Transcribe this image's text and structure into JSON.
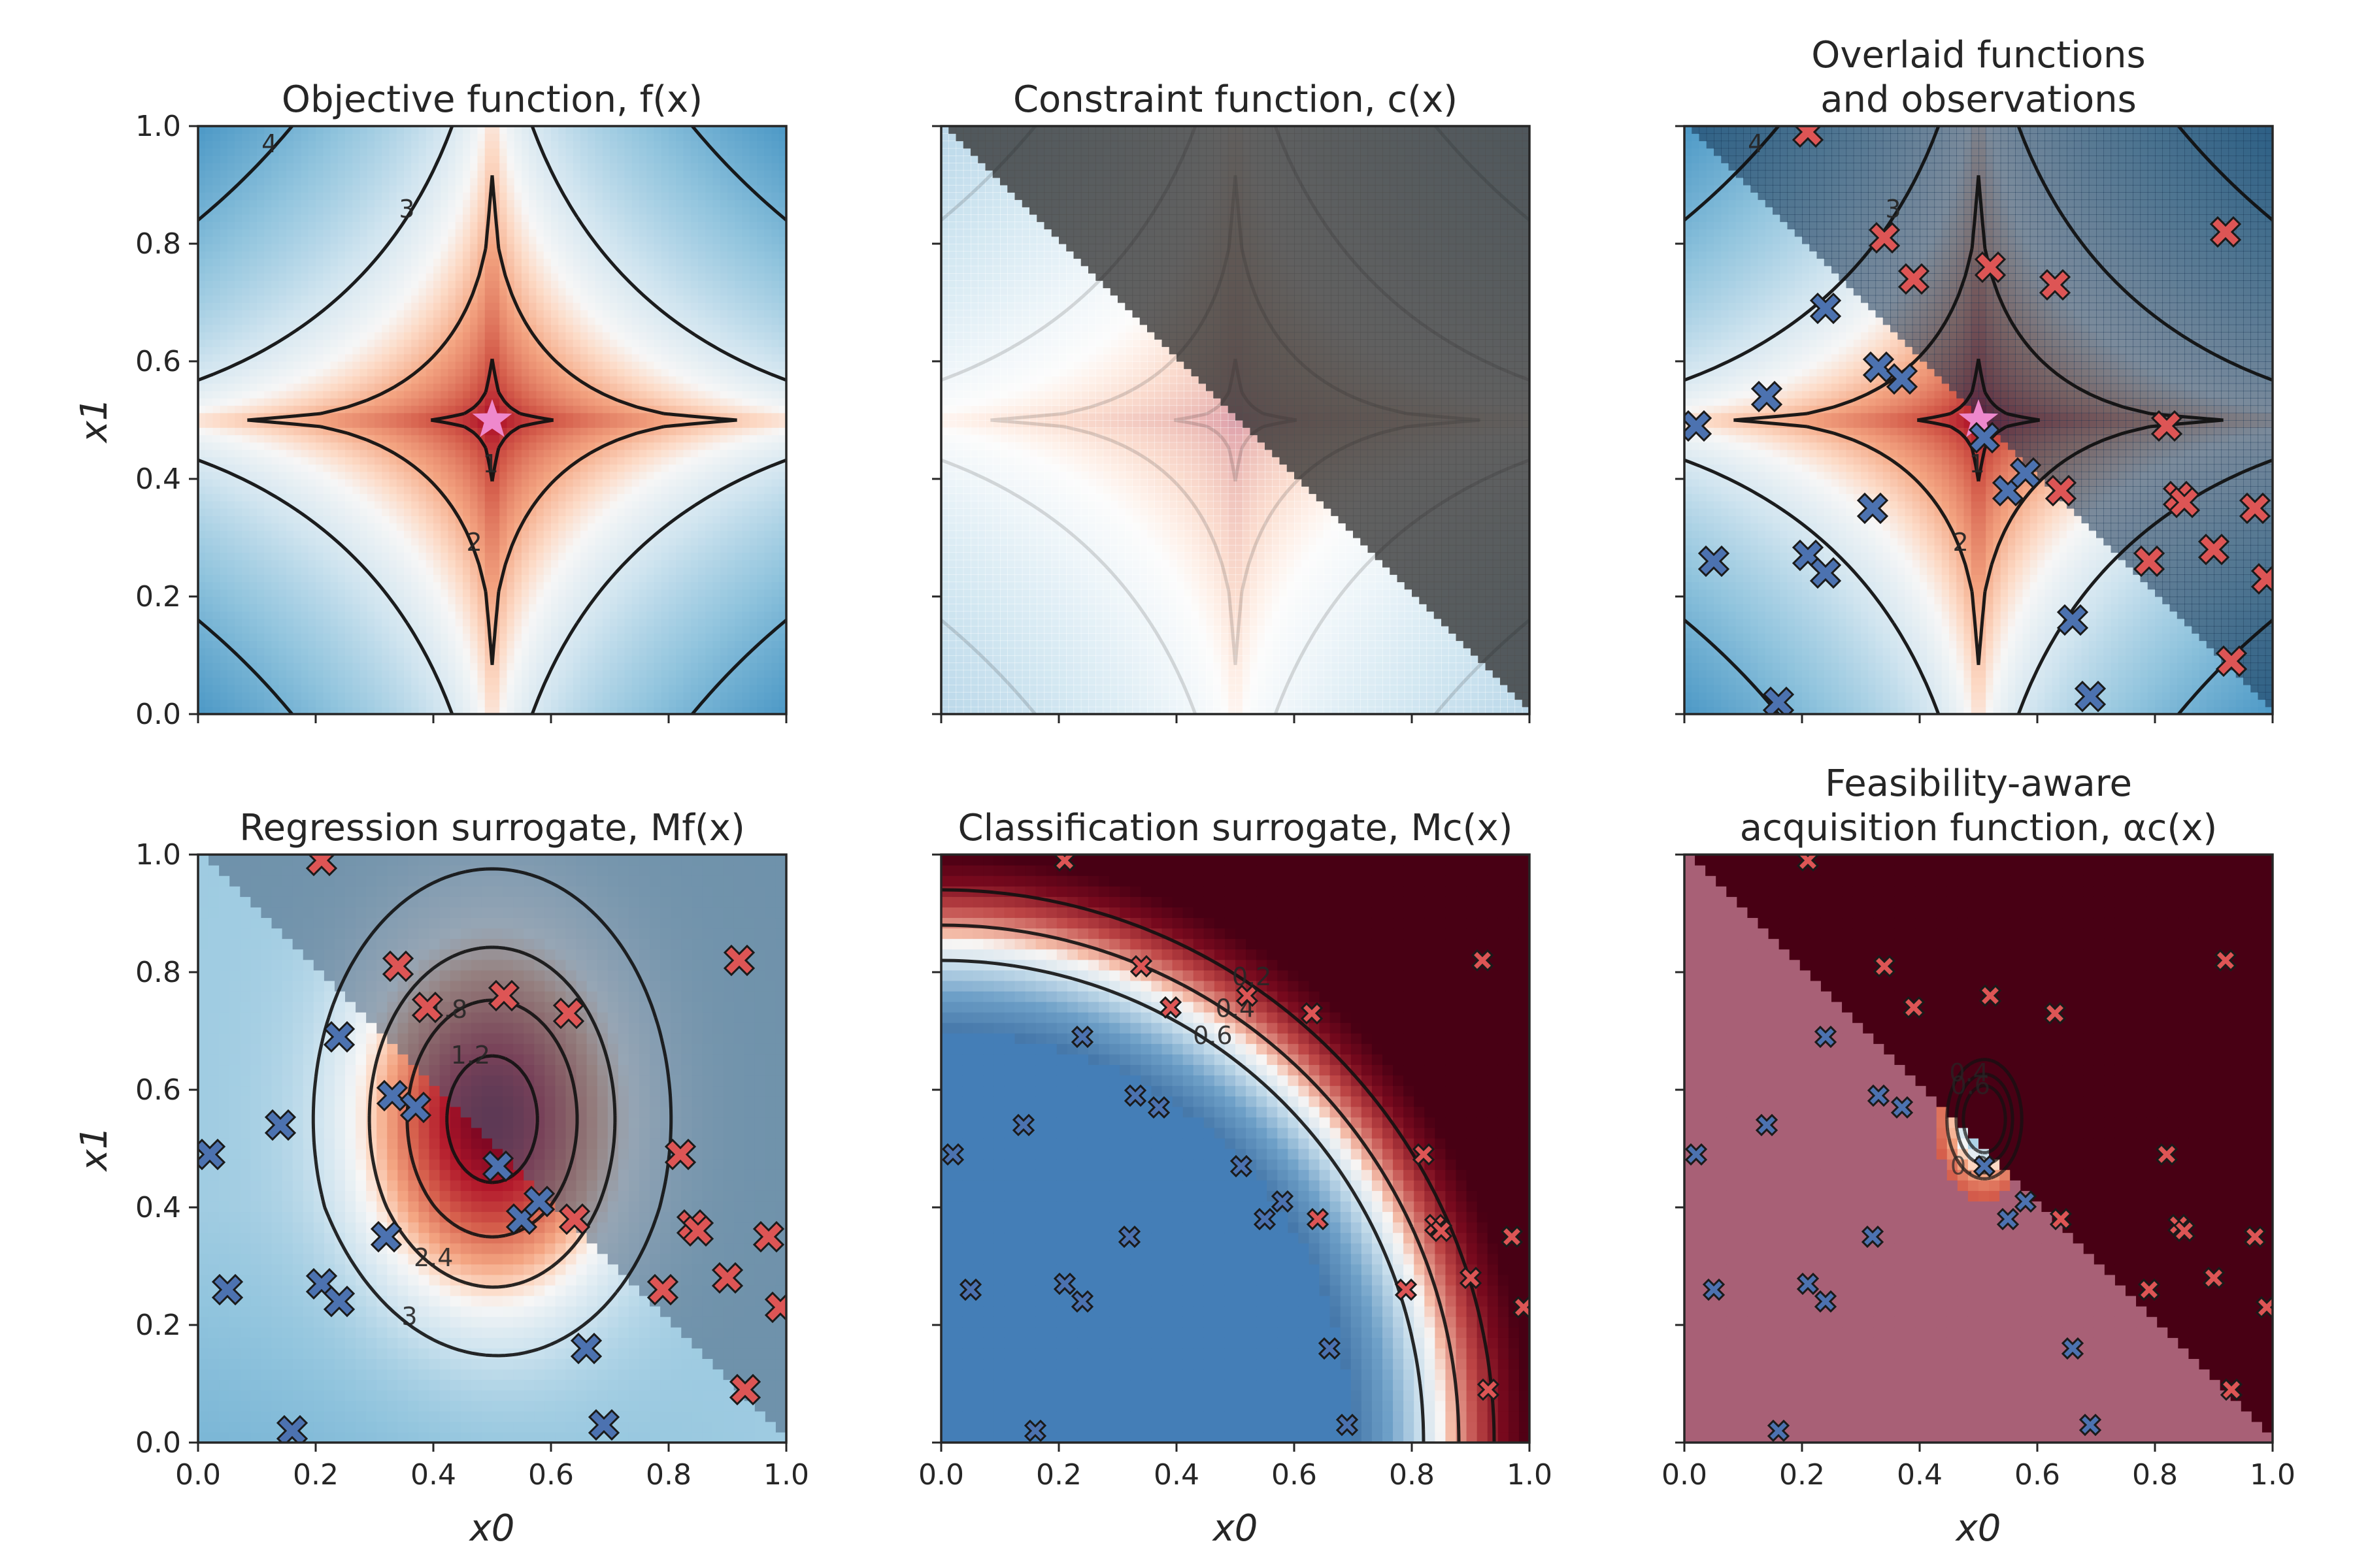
{
  "chart_data": [
    {
      "type": "heatmap",
      "title": "Objective function, f(x)",
      "xlim": [
        0.0,
        1.0
      ],
      "ylim": [
        0.0,
        1.0
      ],
      "xlabel": "",
      "ylabel": "x1",
      "contour_levels": [
        1,
        2,
        3,
        4
      ],
      "star": [
        0.5,
        0.5
      ],
      "grid": false
    },
    {
      "type": "heatmap",
      "title": "Constraint function, c(x)",
      "xlim": [
        0.0,
        1.0
      ],
      "ylim": [
        0.0,
        1.0
      ],
      "xlabel": "",
      "ylabel": "",
      "contour_levels": [
        1,
        2,
        3,
        4
      ],
      "infeasible_region": "x0 + x1 > 1",
      "grid": false
    },
    {
      "type": "heatmap",
      "title": "Overlaid functions and observations",
      "xlim": [
        0.0,
        1.0
      ],
      "ylim": [
        0.0,
        1.0
      ],
      "xlabel": "",
      "ylabel": "",
      "contour_levels": [
        1,
        2,
        3,
        4
      ],
      "star": [
        0.5,
        0.5
      ],
      "grid": false
    },
    {
      "type": "heatmap",
      "title": "Regression surrogate, Mf(x)",
      "xlim": [
        0.0,
        1.0
      ],
      "ylim": [
        0.0,
        1.0
      ],
      "xlabel": "x0",
      "ylabel": "x1",
      "contour_levels": [
        1.2,
        1.8,
        2.4,
        3.0,
        3.6
      ],
      "grid": false
    },
    {
      "type": "heatmap",
      "title": "Classification surrogate, Mc(x)",
      "xlim": [
        0.0,
        1.0
      ],
      "ylim": [
        0.0,
        1.0
      ],
      "xlabel": "x0",
      "ylabel": "",
      "contour_levels": [
        0.2,
        0.4,
        0.6
      ],
      "grid": false
    },
    {
      "type": "heatmap",
      "title": "Feasibility-aware acquisition function, αc(x)",
      "xlim": [
        0.0,
        1.0
      ],
      "ylim": [
        0.0,
        1.0
      ],
      "xlabel": "x0",
      "ylabel": "",
      "contour_levels": [
        0.2,
        0.4,
        0.6
      ],
      "grid": false
    }
  ],
  "observations": {
    "feasible": [
      [
        0.02,
        0.49
      ],
      [
        0.05,
        0.26
      ],
      [
        0.14,
        0.54
      ],
      [
        0.16,
        0.02
      ],
      [
        0.21,
        0.27
      ],
      [
        0.24,
        0.24
      ],
      [
        0.24,
        0.69
      ],
      [
        0.32,
        0.35
      ],
      [
        0.33,
        0.59
      ],
      [
        0.37,
        0.57
      ],
      [
        0.51,
        0.47
      ],
      [
        0.55,
        0.38
      ],
      [
        0.58,
        0.41
      ],
      [
        0.66,
        0.16
      ],
      [
        0.69,
        0.03
      ]
    ],
    "infeasible": [
      [
        0.21,
        0.99
      ],
      [
        0.34,
        0.81
      ],
      [
        0.39,
        0.74
      ],
      [
        0.52,
        0.76
      ],
      [
        0.63,
        0.73
      ],
      [
        0.64,
        0.38
      ],
      [
        0.79,
        0.26
      ],
      [
        0.82,
        0.49
      ],
      [
        0.84,
        0.37
      ],
      [
        0.85,
        0.36
      ],
      [
        0.9,
        0.28
      ],
      [
        0.92,
        0.82
      ],
      [
        0.93,
        0.09
      ],
      [
        0.97,
        0.35
      ],
      [
        0.99,
        0.23
      ]
    ]
  },
  "colors": {
    "feasible_marker": "#4c72b0",
    "infeasible_marker": "#dd5555",
    "star": "#ee88cc",
    "contour": "#111111",
    "infeasible_overlay": "#3a3a3a"
  },
  "ticks": {
    "x": [
      "0.0",
      "0.2",
      "0.4",
      "0.6",
      "0.8",
      "1.0"
    ],
    "y": [
      "0.0",
      "0.2",
      "0.4",
      "0.6",
      "0.8",
      "1.0"
    ]
  }
}
